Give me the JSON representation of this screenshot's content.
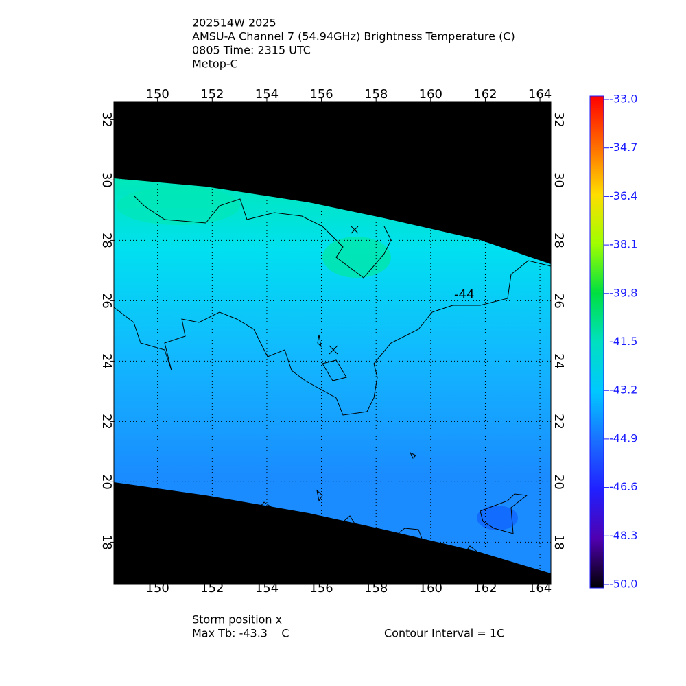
{
  "header": {
    "lines": [
      "202514W 2025",
      "AMSU-A Channel 7 (54.94GHz) Brightness Temperature (C)",
      "0805 Time: 2315 UTC",
      "Metop-C"
    ]
  },
  "map": {
    "xlim": [
      148.4,
      164.4
    ],
    "ylim": [
      16.6,
      32.6
    ],
    "xticks": [
      150,
      152,
      154,
      156,
      158,
      160,
      162,
      164
    ],
    "yticks": [
      18,
      20,
      22,
      24,
      26,
      28,
      30,
      32
    ],
    "contour_label": "-44",
    "grid": true
  },
  "colorbar": {
    "lim": [
      -50,
      -33
    ],
    "ticks": [
      {
        "value": -33,
        "label": "-33.0"
      },
      {
        "value": -34.7,
        "label": "-34.7"
      },
      {
        "value": -36.4,
        "label": "-36.4"
      },
      {
        "value": -38.1,
        "label": "-38.1"
      },
      {
        "value": -39.8,
        "label": "-39.8"
      },
      {
        "value": -41.5,
        "label": "-41.5"
      },
      {
        "value": -43.2,
        "label": "-43.2"
      },
      {
        "value": -44.9,
        "label": "-44.9"
      },
      {
        "value": -46.6,
        "label": "-46.6"
      },
      {
        "value": -48.3,
        "label": "-48.3"
      },
      {
        "value": -50,
        "label": "-50.0"
      }
    ]
  },
  "footer": {
    "storm": "Storm position x",
    "max_tb": "Max Tb: -43.3    C",
    "contour_interval": "Contour Interval = 1C"
  }
}
